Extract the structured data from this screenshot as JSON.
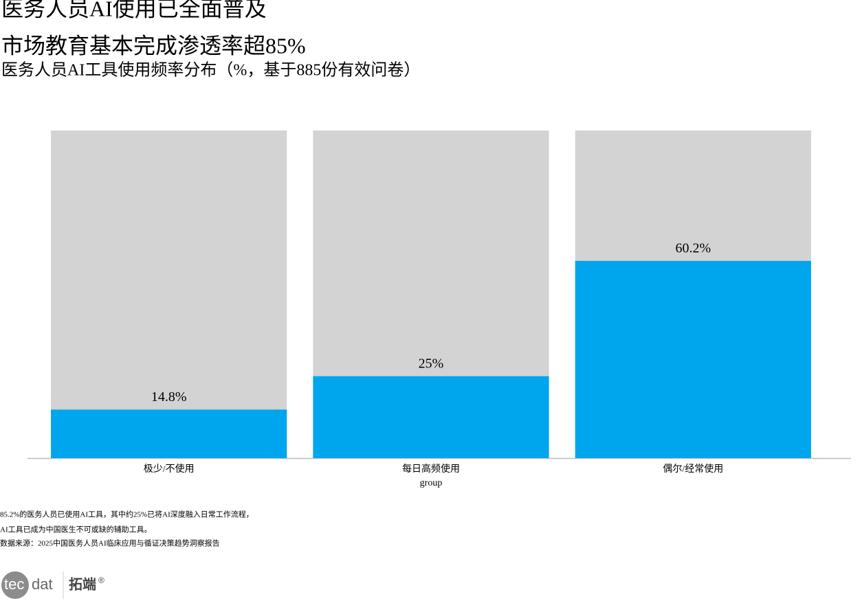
{
  "chart_data": {
    "type": "bar",
    "title": "医务人员AI使用已全面普及",
    "title2": "市场教育基本完成渗透率超85%",
    "subtitle": "医务人员AI工具使用频率分布（%，基于885份有效问卷）",
    "categories": [
      "极少/不使用",
      "每日高频使用",
      "偶尔/经常使用"
    ],
    "values": [
      14.8,
      25,
      60.2
    ],
    "value_labels": [
      "14.8%",
      "25%",
      "60.2%"
    ],
    "color": "#00a6ed",
    "background_color": "#d3d3d3",
    "ylim": [
      0,
      100
    ],
    "x_label": "group",
    "notes": [
      "85.2%的医务人员已使用AI工具，其中约25%已将AI深度融入日常工作流程，",
      "AI工具已成为中国医生不可或缺的辅助工具。",
      "数据来源：2025中国医务人员AI临床应用与循证决策趋势洞察报告"
    ]
  },
  "logo": {
    "part1": "tec",
    "part2": "dat",
    "brand": "拓端",
    "mark": "®"
  }
}
